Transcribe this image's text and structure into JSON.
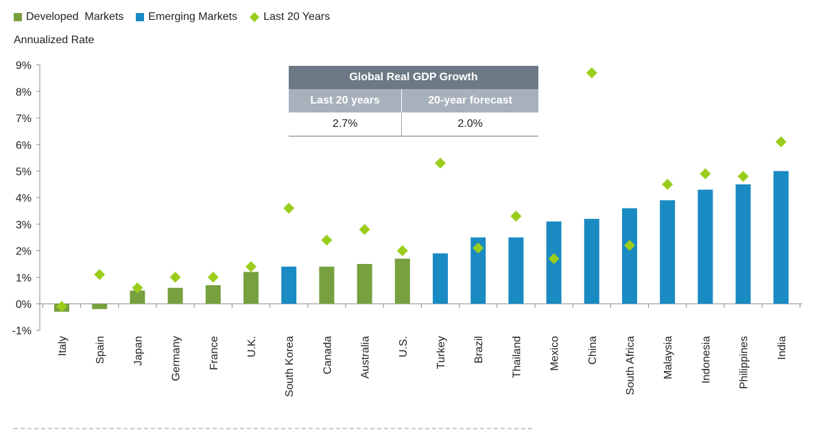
{
  "legend": {
    "developed": "Developed  Markets",
    "emerging": "Emerging Markets",
    "last20": "Last 20 Years"
  },
  "colors": {
    "developed": "#77a03f",
    "emerging": "#1a8ac3",
    "last20": "#9acd1b",
    "grid_axis": "#888888",
    "table_title_bg": "#6d7a86",
    "table_head_bg": "#a7b1bb"
  },
  "gdp_table": {
    "title": "Global Real GDP Growth",
    "col1_header": "Last 20 years",
    "col2_header": "20-year forecast",
    "col1_value": "2.7%",
    "col2_value": "2.0%"
  },
  "chart_data": {
    "type": "bar",
    "ylabel": "Annualized Rate",
    "ylim": [
      -1,
      9
    ],
    "yticks": [
      "-1%",
      "0%",
      "1%",
      "2%",
      "3%",
      "4%",
      "5%",
      "6%",
      "7%",
      "8%",
      "9%"
    ],
    "categories": [
      "Italy",
      "Spain",
      "Japan",
      "Germany",
      "France",
      "U.K.",
      "South Korea",
      "Canada",
      "Australia",
      "U.S.",
      "Turkey",
      "Brazil",
      "Thailand",
      "Mexico",
      "China",
      "South Africa",
      "Malaysia",
      "Indonesia",
      "Philippines",
      "India"
    ],
    "groups": [
      "developed",
      "developed",
      "developed",
      "developed",
      "developed",
      "developed",
      "emerging",
      "developed",
      "developed",
      "developed",
      "emerging",
      "emerging",
      "emerging",
      "emerging",
      "emerging",
      "emerging",
      "emerging",
      "emerging",
      "emerging",
      "emerging"
    ],
    "series": [
      {
        "name": "20-year forecast",
        "kind": "bar",
        "values": [
          -0.3,
          -0.2,
          0.5,
          0.6,
          0.7,
          1.2,
          1.4,
          1.4,
          1.5,
          1.7,
          1.9,
          2.5,
          2.5,
          3.1,
          3.2,
          3.6,
          3.9,
          4.3,
          4.5,
          5.0
        ]
      },
      {
        "name": "Last 20 Years",
        "kind": "diamond",
        "values": [
          -0.1,
          1.1,
          0.6,
          1.0,
          1.0,
          1.4,
          3.6,
          2.4,
          2.8,
          2.0,
          5.3,
          2.1,
          3.3,
          1.7,
          8.7,
          2.2,
          4.5,
          4.9,
          4.8,
          6.1
        ]
      }
    ],
    "grid": false,
    "legend_position": "top-left"
  }
}
